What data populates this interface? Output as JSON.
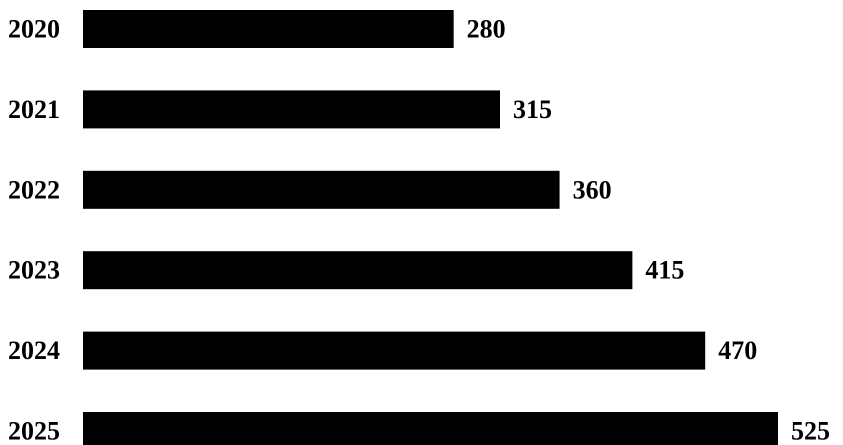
{
  "chart_data": {
    "type": "bar",
    "orientation": "horizontal",
    "categories": [
      "2020",
      "2021",
      "2022",
      "2023",
      "2024",
      "2025"
    ],
    "values": [
      280,
      315,
      360,
      415,
      470,
      525
    ],
    "title": "",
    "xlabel": "",
    "ylabel": "",
    "xlim": [
      0,
      525
    ],
    "grid": false,
    "legend": "none",
    "bar_color": "#000000",
    "text_color": "#000000",
    "data_labels": true
  }
}
